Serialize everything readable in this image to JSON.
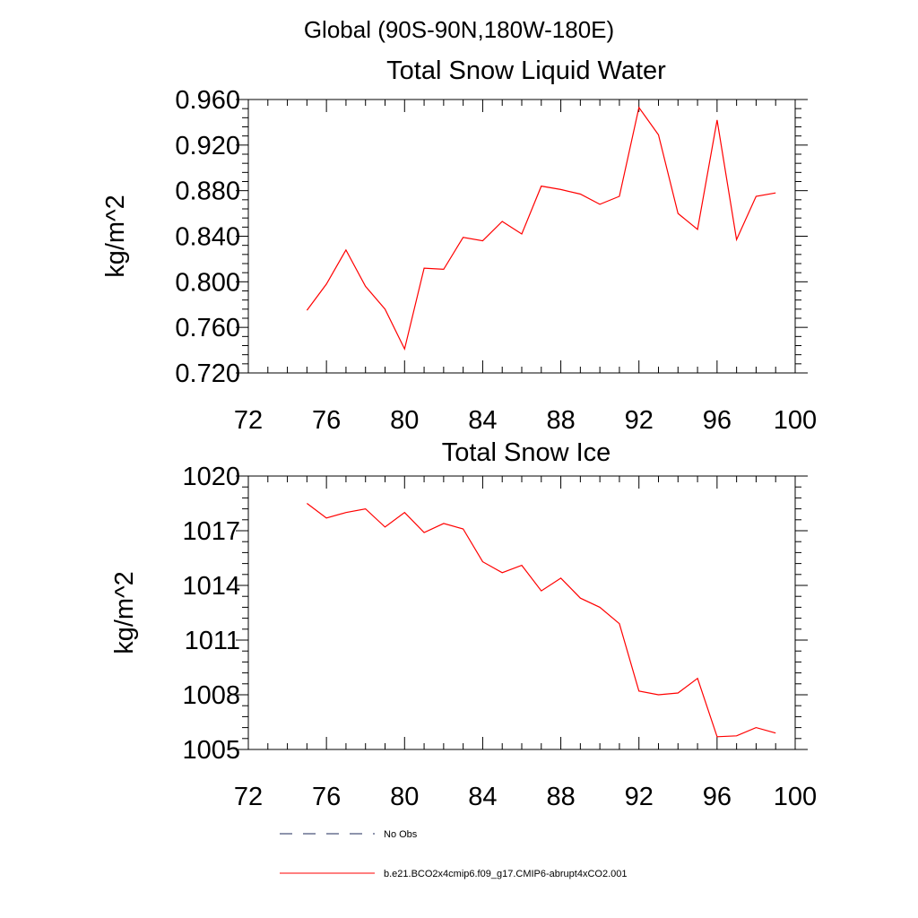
{
  "page_title": "Global (90S-90N,180W-180E)",
  "chart_data": [
    {
      "type": "line",
      "title": "Total Snow Liquid Water",
      "xlabel": "",
      "ylabel": "kg/m^2",
      "xlim": [
        72,
        100
      ],
      "ylim": [
        0.72,
        0.96
      ],
      "xticks": [
        72,
        76,
        80,
        84,
        88,
        92,
        96,
        100
      ],
      "xtick_labels": [
        "72",
        "76",
        "80",
        "84",
        "88",
        "92",
        "96",
        "100"
      ],
      "yticks": [
        0.72,
        0.76,
        0.8,
        0.84,
        0.88,
        0.92,
        0.96
      ],
      "ytick_labels": [
        "0.720",
        "0.760",
        "0.800",
        "0.840",
        "0.880",
        "0.920",
        "0.960"
      ],
      "grid": false,
      "series": [
        {
          "name": "b.e21.BCO2x4cmip6.f09_g17.CMIP6-abrupt4xCO2.001",
          "color": "#ff0000",
          "x": [
            75,
            76,
            77,
            78,
            79,
            80,
            81,
            82,
            83,
            84,
            85,
            86,
            87,
            88,
            89,
            90,
            91,
            92,
            93,
            94,
            95,
            96,
            97,
            98,
            99
          ],
          "values": [
            0.775,
            0.798,
            0.828,
            0.796,
            0.776,
            0.741,
            0.812,
            0.811,
            0.839,
            0.836,
            0.853,
            0.842,
            0.884,
            0.881,
            0.877,
            0.868,
            0.875,
            0.953,
            0.929,
            0.86,
            0.846,
            0.942,
            0.837,
            0.875,
            0.878
          ]
        }
      ]
    },
    {
      "type": "line",
      "title": "Total Snow Ice",
      "xlabel": "",
      "ylabel": "kg/m^2",
      "xlim": [
        72,
        100
      ],
      "ylim": [
        1005,
        1020
      ],
      "xticks": [
        72,
        76,
        80,
        84,
        88,
        92,
        96,
        100
      ],
      "xtick_labels": [
        "72",
        "76",
        "80",
        "84",
        "88",
        "92",
        "96",
        "100"
      ],
      "yticks": [
        1005,
        1008,
        1011,
        1014,
        1017,
        1020
      ],
      "ytick_labels": [
        "1005",
        "1008",
        "1011",
        "1014",
        "1017",
        "1020"
      ],
      "grid": false,
      "series": [
        {
          "name": "b.e21.BCO2x4cmip6.f09_g17.CMIP6-abrupt4xCO2.001",
          "color": "#ff0000",
          "x": [
            75,
            76,
            77,
            78,
            79,
            80,
            81,
            82,
            83,
            84,
            85,
            86,
            87,
            88,
            89,
            90,
            91,
            92,
            93,
            94,
            95,
            96,
            97,
            98,
            99
          ],
          "values": [
            1018.5,
            1017.7,
            1018.0,
            1018.2,
            1017.2,
            1018.0,
            1016.9,
            1017.4,
            1017.1,
            1015.3,
            1014.7,
            1015.1,
            1013.7,
            1014.4,
            1013.3,
            1012.8,
            1011.9,
            1008.2,
            1008.0,
            1008.1,
            1008.9,
            1005.7,
            1005.75,
            1006.2,
            1005.9
          ]
        }
      ]
    }
  ],
  "legend": {
    "placement": "bottom",
    "items": [
      {
        "label": "No Obs",
        "style": "dashed",
        "color": "#1e2a5a"
      },
      {
        "label": "b.e21.BCO2x4cmip6.f09_g17.CMIP6-abrupt4xCO2.001",
        "style": "solid",
        "color": "#ff0000"
      }
    ]
  }
}
